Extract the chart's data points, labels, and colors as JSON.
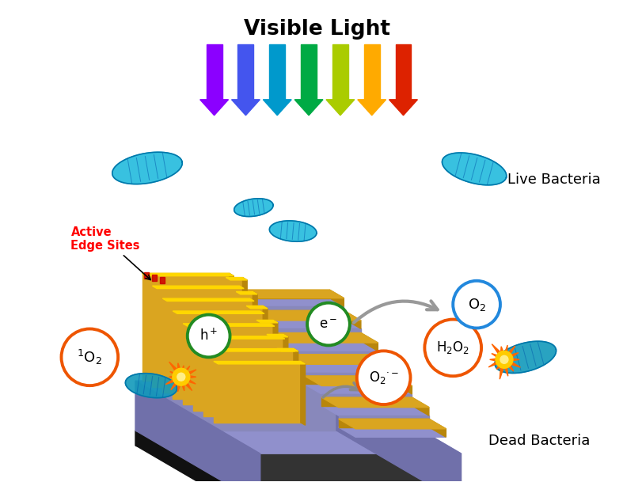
{
  "title": "Visible Light",
  "background_color": "#ffffff",
  "arrow_colors": [
    "#8B00FF",
    "#4455EE",
    "#0099CC",
    "#00AA44",
    "#AACC00",
    "#FFAA00",
    "#DD2200"
  ],
  "live_bacteria_label": "Live Bacteria",
  "dead_bacteria_label": "Dead Bacteria",
  "active_edge_label": "Active\nEdge Sites",
  "device_gold_color": "#DAA520",
  "device_gold_bright": "#FFD700",
  "device_gold_dark": "#B8860B",
  "device_purple_top": "#9090CC",
  "device_purple_side": "#7070AA",
  "device_purple_face": "#8888BB",
  "device_dark_color": "#2a2a2a",
  "orange_circle_color": "#EE5500",
  "green_circle_color": "#228B22",
  "blue_circle_color": "#2288DD"
}
